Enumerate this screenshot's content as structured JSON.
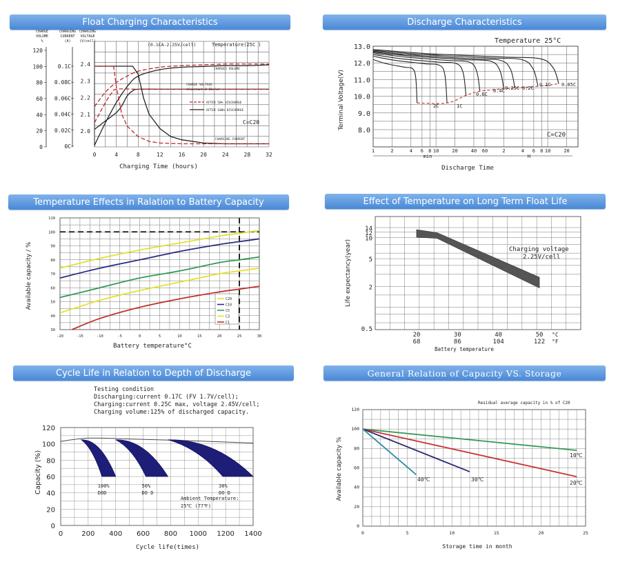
{
  "chart_data": [
    {
      "type": "line",
      "id": "float",
      "title": "Float Charging Characteristics",
      "xlabel": "Charging Time (hours)",
      "x_ticks": [
        "0",
        "4",
        "8",
        "12",
        "16",
        "20",
        "24",
        "28",
        "32"
      ],
      "xlim": [
        0,
        32
      ],
      "axis_headers": [
        "CHARGE VOLUME %",
        "CHARGING CURRENT (A)",
        "CHARGING VOLTAGE (V/cell)"
      ],
      "volume_ticks": [
        "120",
        "100",
        "80",
        "60",
        "40",
        "20",
        "0"
      ],
      "current_ticks": [
        "0.1C",
        "0.08C",
        "0.06C",
        "0.04C",
        "0.02C",
        "0C"
      ],
      "voltage_ticks": [
        "2.4",
        "2.3",
        "2.2",
        "2.1",
        "2.0"
      ],
      "condition": "(0.1CA-2.25V/cell)",
      "temperature": "Temperature(25C )",
      "labels": {
        "volume": "CHARGED VOLUME",
        "voltage": "CHARGE VOLTAGE (Constant 2.25v/c)",
        "current": "CHARGING CURRENT",
        "after50": "AFTER 50% DISCHARGE",
        "after100": "AFTER 100% DISCHARGE",
        "rate": "C=C20"
      },
      "series": [
        {
          "name": "Charged volume (after 100% discharge)",
          "x": [
            0,
            2,
            4,
            6,
            8,
            12,
            16,
            20,
            24,
            28,
            32
          ],
          "y": [
            2,
            30,
            55,
            75,
            88,
            96,
            99,
            100,
            101,
            101,
            102
          ]
        },
        {
          "name": "Charged volume (after 50% discharge)",
          "x": [
            0,
            2,
            4,
            6,
            8,
            12,
            16,
            20,
            24,
            28,
            32
          ],
          "y": [
            50,
            68,
            80,
            88,
            94,
            99,
            101,
            102,
            103,
            103,
            103
          ]
        },
        {
          "name": "Charge voltage (after 100% discharge)",
          "x": [
            0,
            2,
            4,
            5,
            6,
            7,
            8,
            12,
            16,
            20,
            24,
            28,
            32
          ],
          "y": [
            2.01,
            2.06,
            2.11,
            2.15,
            2.21,
            2.24,
            2.25,
            2.25,
            2.25,
            2.25,
            2.25,
            2.25,
            2.25
          ]
        },
        {
          "name": "Charge voltage (after 50% discharge)",
          "x": [
            0,
            1,
            2,
            3,
            4,
            8,
            12,
            16,
            20,
            24,
            28,
            32
          ],
          "y": [
            2.05,
            2.11,
            2.17,
            2.22,
            2.25,
            2.25,
            2.25,
            2.25,
            2.25,
            2.25,
            2.25,
            2.25
          ]
        },
        {
          "name": "Charging current (after 100% discharge)",
          "x": [
            0,
            6,
            7,
            8,
            9,
            10,
            12,
            14,
            16,
            20,
            24,
            28,
            32
          ],
          "y": [
            0.1,
            0.1,
            0.1,
            0.09,
            0.06,
            0.04,
            0.022,
            0.012,
            0.008,
            0.004,
            0.003,
            0.003,
            0.003
          ]
        },
        {
          "name": "Charging current (after 50% discharge)",
          "x": [
            0,
            3,
            3.5,
            4,
            5,
            6,
            8,
            10,
            12,
            16,
            20,
            24,
            32
          ],
          "y": [
            0.1,
            0.1,
            0.1,
            0.075,
            0.04,
            0.025,
            0.012,
            0.006,
            0.004,
            0.003,
            0.003,
            0.003,
            0.003
          ]
        }
      ]
    },
    {
      "type": "line",
      "id": "discharge",
      "title": "Discharge Characteristics",
      "ylabel": "Terminal Voltage(V)",
      "xlabel": "Discharge Time",
      "y_ticks": [
        "13.0",
        "12.0",
        "11.0",
        "10.0",
        "9.0",
        "8.0"
      ],
      "ylim": [
        7.2,
        13.2
      ],
      "x_ticks": [
        "1",
        "2",
        "4",
        "6",
        "8",
        "10",
        "20",
        "40",
        "60",
        "2",
        "4",
        "6",
        "8",
        "10",
        "20"
      ],
      "unit_min": "min",
      "unit_h": "H",
      "temperature": "Temperature 25°C",
      "rate": "C=C20",
      "rate_labels": [
        "2C",
        "1C",
        "0.6C",
        "0.4C",
        "0.25C",
        "0.2C",
        "0.1C",
        "0.05C"
      ],
      "series": [
        {
          "name": "2C",
          "end_minutes": 5,
          "start_v": 12.2,
          "end_v": 9.6
        },
        {
          "name": "1C",
          "end_minutes": 15,
          "start_v": 12.4,
          "end_v": 9.6
        },
        {
          "name": "0.6C",
          "end_minutes": 30,
          "start_v": 12.5,
          "end_v": 10.05
        },
        {
          "name": "0.4C",
          "end_minutes": 50,
          "start_v": 12.6,
          "end_v": 10.3
        },
        {
          "name": "0.25C",
          "end_minutes": 120,
          "start_v": 12.65,
          "end_v": 10.45
        },
        {
          "name": "0.2C",
          "end_minutes": 180,
          "start_v": 12.7,
          "end_v": 10.5
        },
        {
          "name": "0.1C",
          "end_minutes": 420,
          "start_v": 12.75,
          "end_v": 10.6
        },
        {
          "name": "0.05C",
          "end_minutes": 900,
          "start_v": 12.8,
          "end_v": 10.75
        }
      ]
    },
    {
      "type": "line",
      "id": "temp_capacity",
      "title": "Temperature Effects in Ralation to Battery Capacity",
      "xlabel": "Battery temperature°C",
      "ylabel": "Available capacity / %",
      "xlim": [
        -20,
        30
      ],
      "ylim": [
        30,
        110
      ],
      "x_ticks": [
        "-20",
        "-15",
        "-10",
        "-5",
        "0",
        "5",
        "10",
        "15",
        "20",
        "25",
        "30"
      ],
      "y_ticks": [
        "110",
        "100",
        "90",
        "80",
        "70",
        "60",
        "50",
        "40",
        "30"
      ],
      "reference": {
        "capacity": 100,
        "temperature": 25
      },
      "series": [
        {
          "name": "C20",
          "color": "#e0e030",
          "x": [
            -20,
            -10,
            0,
            10,
            20,
            25,
            30
          ],
          "y": [
            74,
            81,
            87,
            92,
            97,
            99,
            101
          ]
        },
        {
          "name": "C10",
          "color": "#2a2a80",
          "x": [
            -20,
            -10,
            0,
            10,
            20,
            25,
            30
          ],
          "y": [
            67,
            74,
            80,
            86,
            91,
            93,
            95
          ]
        },
        {
          "name": "C5",
          "color": "#2f9a55",
          "x": [
            -20,
            -10,
            0,
            10,
            20,
            25,
            30
          ],
          "y": [
            53,
            60,
            67,
            72,
            78,
            80,
            82
          ]
        },
        {
          "name": "C3",
          "color": "#e6e02a",
          "x": [
            -20,
            -10,
            0,
            10,
            20,
            25,
            30
          ],
          "y": [
            42,
            51,
            58,
            64,
            70,
            72,
            74
          ]
        },
        {
          "name": "C1",
          "color": "#c03030",
          "x": [
            -17,
            -10,
            0,
            10,
            20,
            25,
            30
          ],
          "y": [
            30,
            38,
            46,
            52,
            57,
            59,
            61
          ]
        }
      ]
    },
    {
      "type": "area",
      "id": "float_life",
      "title": "Effect of Temperature on Long Term Float Life",
      "ylabel": "Life expectancy(year)",
      "xlabel": "Battery temperature",
      "x_ticks_c": [
        "20",
        "30",
        "40",
        "50"
      ],
      "x_ticks_f": [
        "68",
        "86",
        "104",
        "122"
      ],
      "unit_c": "°C",
      "unit_f": "°F",
      "y_ticks": [
        "14",
        "12",
        "10",
        "5",
        "2",
        "0.5"
      ],
      "annotation": {
        "line1": "Charging voltage",
        "line2": "2.25V/cell"
      },
      "band": {
        "x": [
          20,
          25,
          50
        ],
        "y_upper": [
          13,
          11.8,
          2.7
        ],
        "y_lower": [
          10.2,
          9.8,
          1.9
        ]
      }
    },
    {
      "type": "area",
      "id": "cycle_life",
      "title": "Cycle Life in Relation to Depth of Discharge",
      "xlabel": "Cycle life(times)",
      "ylabel": "Capacity (%)",
      "xlim": [
        0,
        1400
      ],
      "ylim": [
        0,
        120
      ],
      "x_ticks": [
        "0",
        "200",
        "400",
        "600",
        "800",
        "1000",
        "1200",
        "1400"
      ],
      "y_ticks": [
        "0",
        "20",
        "40",
        "60",
        "80",
        "100",
        "120"
      ],
      "conditions": [
        "Testing condition",
        "Discharging:current 0.17C (FV 1.7V/cell);",
        "Charging:current 0.25C max, voltage 2.45V/cell;",
        "Charging volume:125% of discharged capacity."
      ],
      "ambient": {
        "line1": "Ambient Temperature:",
        "line2": "25℃ (77℉)"
      },
      "bands": [
        {
          "label_top": "100%",
          "label_bottom": "DOD",
          "start": 150,
          "end_low": 300,
          "end_high": 400
        },
        {
          "label_top": "50%",
          "label_bottom": "DO D",
          "start": 400,
          "end_low": 620,
          "end_high": 780
        },
        {
          "label_top": "30%",
          "label_bottom": "DO D",
          "start": 780,
          "end_low": 1180,
          "end_high": 1400
        }
      ]
    },
    {
      "type": "line",
      "id": "storage",
      "title": "General Relation of Capacity VS. Storage",
      "subtitle": "Residual average capacity in % of C20",
      "xlabel": "Storage time in month",
      "ylabel": "Available capacity %",
      "xlim": [
        0,
        25
      ],
      "ylim": [
        0,
        120
      ],
      "x_ticks": [
        "0",
        "5",
        "10",
        "15",
        "20",
        "25"
      ],
      "y_ticks": [
        "0",
        "20",
        "40",
        "60",
        "80",
        "100",
        "120"
      ],
      "series": [
        {
          "name": "10℃",
          "color": "#3a9a5a",
          "x": [
            0,
            24
          ],
          "y": [
            100,
            78
          ]
        },
        {
          "name": "20℃",
          "color": "#c83232",
          "x": [
            0,
            24
          ],
          "y": [
            100,
            51
          ]
        },
        {
          "name": "30℃",
          "color": "#2a2a70",
          "x": [
            0,
            12
          ],
          "y": [
            100,
            56
          ]
        },
        {
          "name": "40℃",
          "color": "#2a8aa8",
          "x": [
            0,
            6
          ],
          "y": [
            100,
            53
          ]
        }
      ]
    }
  ]
}
